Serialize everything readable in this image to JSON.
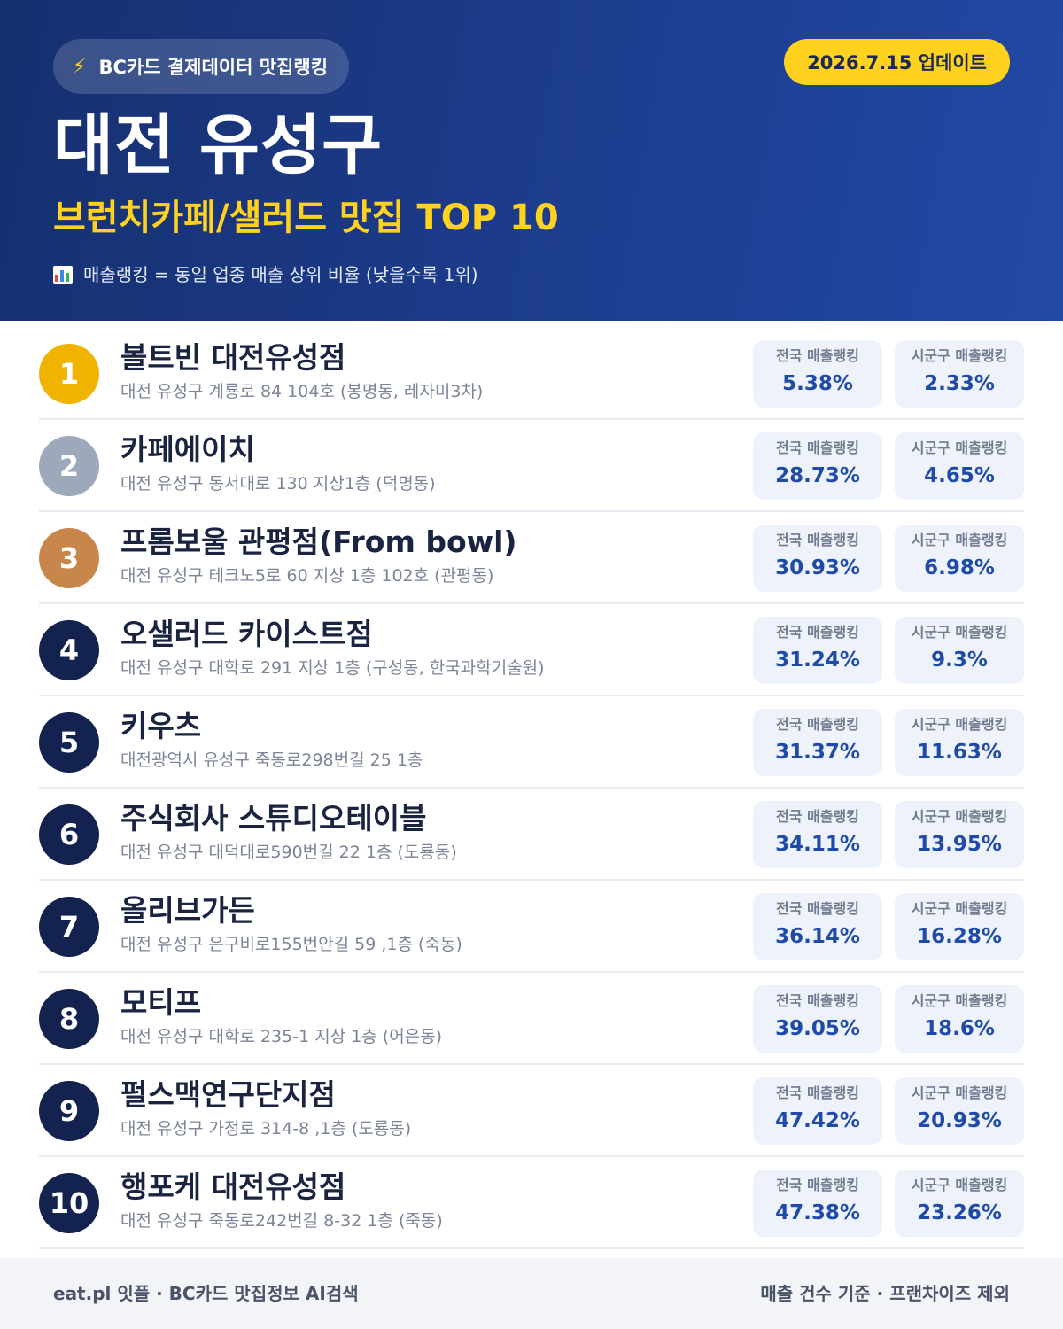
{
  "header": {
    "source_label": "BC카드 결제데이터 맛집랭킹",
    "source_icon": "lightning-bolt-icon",
    "update_label": "2026.7.15 업데이트",
    "region": "대전 유성구",
    "category": "브런치카페/샐러드 맛집 TOP 10",
    "note_icon": "bar-chart-icon",
    "note": "매출랭킹 = 동일 업종 매출 상위 비율 (낮을수록 1위)"
  },
  "stat_labels": {
    "national": "전국 매출랭킹",
    "local": "시군구 매출랭킹"
  },
  "restaurants": [
    {
      "rank": "1",
      "name": "볼트빈 대전유성점",
      "address": "대전 유성구 계룡로 84 104호 (봉명동, 레자미3차)",
      "national": "5.38%",
      "local": "2.33%"
    },
    {
      "rank": "2",
      "name": "카페에이치",
      "address": "대전 유성구 동서대로 130 지상1층 (덕명동)",
      "national": "28.73%",
      "local": "4.65%"
    },
    {
      "rank": "3",
      "name": "프롬보울 관평점(From bowl)",
      "address": "대전 유성구 테크노5로 60 지상 1층 102호 (관평동)",
      "national": "30.93%",
      "local": "6.98%"
    },
    {
      "rank": "4",
      "name": "오샐러드 카이스트점",
      "address": "대전 유성구 대학로 291 지상 1층 (구성동, 한국과학기술원)",
      "national": "31.24%",
      "local": "9.3%"
    },
    {
      "rank": "5",
      "name": "키우츠",
      "address": "대전광역시 유성구 죽동로298번길 25 1층",
      "national": "31.37%",
      "local": "11.63%"
    },
    {
      "rank": "6",
      "name": "주식회사 스튜디오테이블",
      "address": "대전 유성구 대덕대로590번길 22 1층 (도룡동)",
      "national": "34.11%",
      "local": "13.95%"
    },
    {
      "rank": "7",
      "name": "올리브가든",
      "address": "대전 유성구 은구비로155번안길 59 ,1층 (죽동)",
      "national": "36.14%",
      "local": "16.28%"
    },
    {
      "rank": "8",
      "name": "모티프",
      "address": "대전 유성구 대학로 235-1 지상 1층 (어은동)",
      "national": "39.05%",
      "local": "18.6%"
    },
    {
      "rank": "9",
      "name": "펄스맥연구단지점",
      "address": "대전 유성구 가정로 314-8 ,1층 (도룡동)",
      "national": "47.42%",
      "local": "20.93%"
    },
    {
      "rank": "10",
      "name": "행포케 대전유성점",
      "address": "대전 유성구 죽동로242번길 8-32 1층 (죽동)",
      "national": "47.38%",
      "local": "23.26%"
    }
  ],
  "footer": {
    "left": "eat.pl 잇플 · BC카드 맛집정보 AI검색",
    "right": "매출 건수 기준 · 프랜차이즈 제외"
  },
  "colors": {
    "header_dark": "#16306f",
    "header_light": "#2149a6",
    "accent_yellow": "#ffd21f",
    "gold": "#f0b400",
    "silver": "#9ea8bb",
    "bronze": "#c8874a",
    "navy_badge": "#14224f",
    "value_blue": "#1f4aa8"
  }
}
